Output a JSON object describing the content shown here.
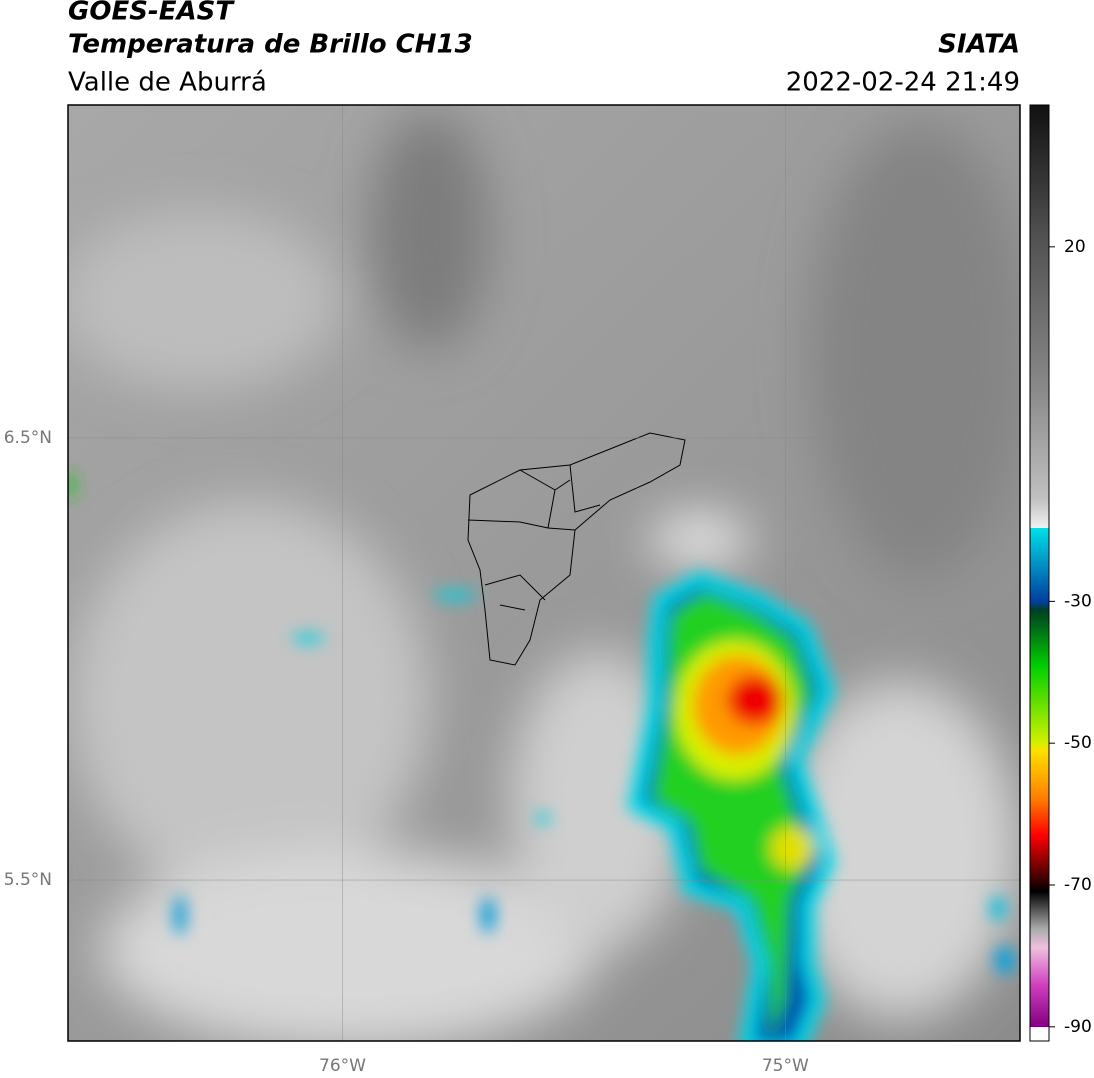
{
  "header": {
    "title": "GOES-EAST",
    "subtitle": "Temperatura de Brillo CH13",
    "region": "Valle de Aburrá",
    "source": "SIATA",
    "datetime": "2022-02-24 21:49"
  },
  "map": {
    "xlim": [
      -76.62,
      -74.47
    ],
    "ylim": [
      5.136,
      7.253
    ],
    "xticks": [
      {
        "value": -76,
        "label": "76°W"
      },
      {
        "value": -75,
        "label": "75°W"
      }
    ],
    "yticks": [
      {
        "value": 6.5,
        "label": "6.5°N"
      },
      {
        "value": 5.5,
        "label": "5.5°N"
      }
    ],
    "grid": true
  },
  "colorbar": {
    "lim": [
      -92,
      40
    ],
    "ticks": [
      20,
      -30,
      -50,
      -70,
      -90
    ]
  }
}
